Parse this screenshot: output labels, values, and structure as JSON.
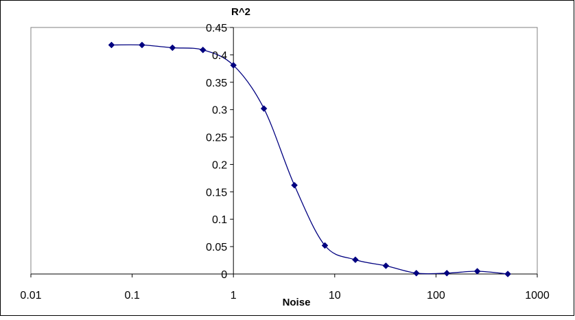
{
  "chart_data": {
    "type": "scatter",
    "title": "",
    "xlabel": "Noise",
    "ylabel": "R^2",
    "x_scale": "log",
    "xlim": [
      0.01,
      1000
    ],
    "ylim": [
      0,
      0.45
    ],
    "x_ticks": [
      "0.01",
      "0.1",
      "1",
      "10",
      "100",
      "1000"
    ],
    "y_ticks": [
      "0",
      "0.05",
      "0.1",
      "0.15",
      "0.2",
      "0.25",
      "0.3",
      "0.35",
      "0.4",
      "0.45"
    ],
    "y_axis_position": "crosses x at 1",
    "grid": false,
    "legend": "none",
    "line": "smoothed",
    "series": [
      {
        "color": "#000080",
        "marker": "diamond",
        "x": [
          0.0625,
          0.125,
          0.25,
          0.5,
          1,
          2,
          4,
          8,
          16,
          32,
          64,
          128,
          256,
          512
        ],
        "y": [
          0.418,
          0.418,
          0.413,
          0.409,
          0.381,
          0.302,
          0.162,
          0.052,
          0.026,
          0.015,
          0.0015,
          0.0015,
          0.005,
          0.0
        ]
      }
    ]
  }
}
